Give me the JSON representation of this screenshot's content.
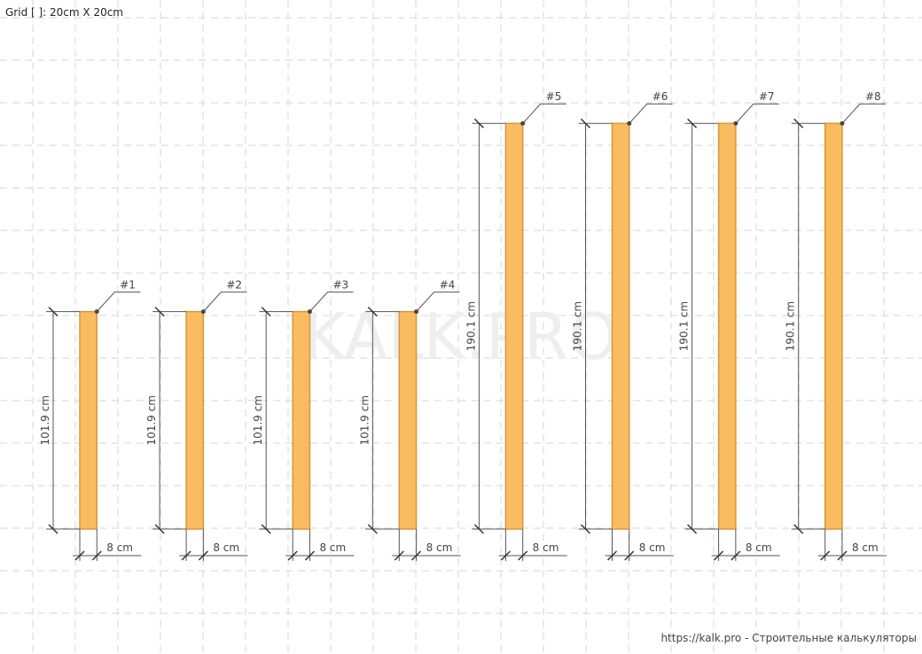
{
  "grid_label": "Grid [ ]: 20cm X 20cm",
  "watermark": "KALK.PRO",
  "footer": "https://kalk.pro - Строительные калькуляторы",
  "colors": {
    "board_fill": "#f9bc60",
    "board_stroke": "#d9963a",
    "dimension_line": "#555555",
    "grid_line": "#dddddd",
    "watermark": "#eeeeee"
  },
  "boards": [
    {
      "label": "#1",
      "length_cm": 101.9,
      "length_label": "101.9 cm",
      "width_cm": 8,
      "width_label": "8 cm"
    },
    {
      "label": "#2",
      "length_cm": 101.9,
      "length_label": "101.9 cm",
      "width_cm": 8,
      "width_label": "8 cm"
    },
    {
      "label": "#3",
      "length_cm": 101.9,
      "length_label": "101.9 cm",
      "width_cm": 8,
      "width_label": "8 cm"
    },
    {
      "label": "#4",
      "length_cm": 101.9,
      "length_label": "101.9 cm",
      "width_cm": 8,
      "width_label": "8 cm"
    },
    {
      "label": "#5",
      "length_cm": 190.1,
      "length_label": "190.1 cm",
      "width_cm": 8,
      "width_label": "8 cm"
    },
    {
      "label": "#6",
      "length_cm": 190.1,
      "length_label": "190.1 cm",
      "width_cm": 8,
      "width_label": "8 cm"
    },
    {
      "label": "#7",
      "length_cm": 190.1,
      "length_label": "190.1 cm",
      "width_cm": 8,
      "width_label": "8 cm"
    },
    {
      "label": "#8",
      "length_cm": 190.1,
      "length_label": "190.1 cm",
      "width_cm": 8,
      "width_label": "8 cm"
    }
  ]
}
